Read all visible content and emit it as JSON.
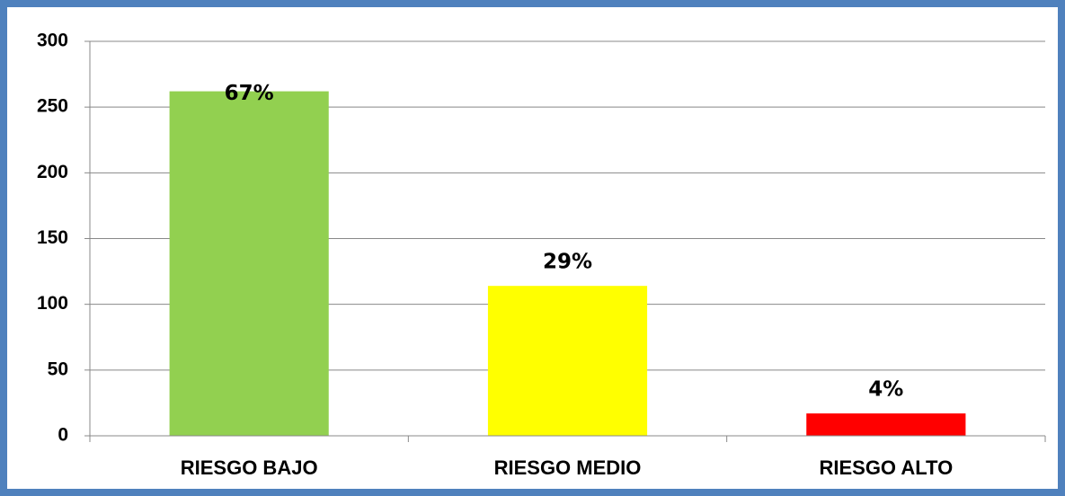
{
  "chart_data": {
    "type": "bar",
    "categories": [
      "RIESGO BAJO",
      "RIESGO MEDIO",
      "RIESGO ALTO"
    ],
    "values": [
      262,
      114,
      17
    ],
    "percent_labels": [
      "67%",
      "29%",
      "4%"
    ],
    "colors": [
      "#92d050",
      "#ffff00",
      "#ff0000"
    ],
    "ylim": [
      0,
      300
    ],
    "yticks": [
      0,
      50,
      100,
      150,
      200,
      250,
      300
    ],
    "grid": true
  }
}
